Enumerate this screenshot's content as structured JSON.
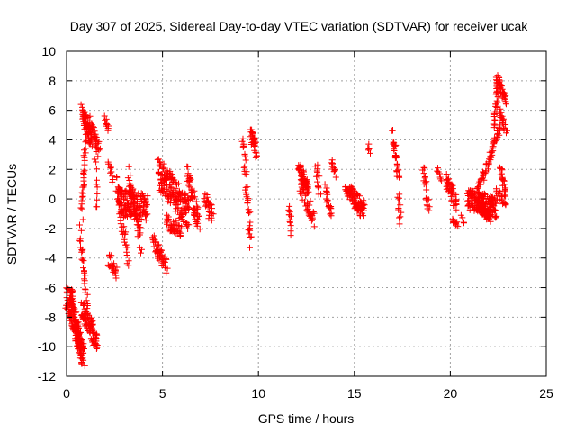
{
  "chart_data": {
    "type": "scatter",
    "title": "Day 307 of 2025, Sidereal Day-to-day VTEC variation (SDTVAR) for receiver ucak",
    "xlabel": "GPS time / hours",
    "ylabel": "SDTVAR / TECUs",
    "xlim": [
      0,
      25
    ],
    "ylim": [
      -12,
      10
    ],
    "xticks": [
      0,
      5,
      10,
      15,
      20,
      25
    ],
    "yticks": [
      -12,
      -10,
      -8,
      -6,
      -4,
      -2,
      0,
      2,
      4,
      6,
      8,
      10
    ],
    "grid": true,
    "marker": "plus",
    "color": "#ff0000",
    "series": [
      {
        "name": "SDTVAR",
        "segments": [
          {
            "x": [
              0.0,
              0.9
            ],
            "y": [
              -6.6,
              -10.7
            ],
            "n": 120,
            "spread": 0.8
          },
          {
            "x": [
              0.2,
              0.8
            ],
            "y": [
              -6.2,
              -10.6
            ],
            "n": 80,
            "spread": 0.7
          },
          {
            "x": [
              0.8,
              1.6
            ],
            "y": [
              -7.5,
              -9.6
            ],
            "n": 90,
            "spread": 0.7
          },
          {
            "x": [
              0.7,
              1.1
            ],
            "y": [
              -2.0,
              -7.5
            ],
            "n": 30,
            "spread": 0.4
          },
          {
            "x": [
              0.8,
              1.3
            ],
            "y": [
              6.0,
              4.0
            ],
            "n": 70,
            "spread": 0.6
          },
          {
            "x": [
              0.8,
              1.0
            ],
            "y": [
              -1.0,
              4.0
            ],
            "n": 30,
            "spread": 0.4
          },
          {
            "x": [
              1.2,
              1.7
            ],
            "y": [
              5.2,
              3.2
            ],
            "n": 40,
            "spread": 0.5
          },
          {
            "x": [
              1.5,
              1.6
            ],
            "y": [
              2.5,
              -0.5
            ],
            "n": 10,
            "spread": 0.4
          },
          {
            "x": [
              2.0,
              2.2
            ],
            "y": [
              5.5,
              4.6
            ],
            "n": 10,
            "spread": 0.2
          },
          {
            "x": [
              2.2,
              2.4
            ],
            "y": [
              2.4,
              1.2
            ],
            "n": 10,
            "spread": 0.3
          },
          {
            "x": [
              2.2,
              2.6
            ],
            "y": [
              -4.0,
              -5.0
            ],
            "n": 25,
            "spread": 0.4
          },
          {
            "x": [
              2.6,
              3.2
            ],
            "y": [
              1.2,
              -4.3
            ],
            "n": 40,
            "spread": 0.6
          },
          {
            "x": [
              2.7,
              4.2
            ],
            "y": [
              -0.2,
              -0.6
            ],
            "n": 140,
            "spread": 0.9
          },
          {
            "x": [
              3.2,
              3.9
            ],
            "y": [
              1.6,
              -3.0
            ],
            "n": 45,
            "spread": 0.7
          },
          {
            "x": [
              4.5,
              5.2
            ],
            "y": [
              -2.8,
              -4.6
            ],
            "n": 50,
            "spread": 0.5
          },
          {
            "x": [
              4.8,
              6.4
            ],
            "y": [
              1.7,
              -1.0
            ],
            "n": 170,
            "spread": 1.1
          },
          {
            "x": [
              5.2,
              6.0
            ],
            "y": [
              -1.5,
              -2.3
            ],
            "n": 40,
            "spread": 0.5
          },
          {
            "x": [
              6.3,
              6.9
            ],
            "y": [
              1.8,
              -1.8
            ],
            "n": 55,
            "spread": 0.6
          },
          {
            "x": [
              7.2,
              7.6
            ],
            "y": [
              0.2,
              -1.3
            ],
            "n": 28,
            "spread": 0.6
          },
          {
            "x": [
              9.2,
              9.6
            ],
            "y": [
              4.2,
              -3.0
            ],
            "n": 40,
            "spread": 0.5
          },
          {
            "x": [
              9.6,
              9.9
            ],
            "y": [
              4.6,
              3.2
            ],
            "n": 35,
            "spread": 0.5
          },
          {
            "x": [
              11.6,
              11.7
            ],
            "y": [
              -0.5,
              -2.3
            ],
            "n": 12,
            "spread": 0.3
          },
          {
            "x": [
              12.1,
              12.6
            ],
            "y": [
              2.1,
              0.6
            ],
            "n": 55,
            "spread": 0.4
          },
          {
            "x": [
              12.2,
              12.9
            ],
            "y": [
              1.0,
              -1.5
            ],
            "n": 45,
            "spread": 0.6
          },
          {
            "x": [
              13.0,
              13.2
            ],
            "y": [
              2.2,
              0.5
            ],
            "n": 15,
            "spread": 0.4
          },
          {
            "x": [
              13.5,
              13.8
            ],
            "y": [
              0.7,
              -1.0
            ],
            "n": 20,
            "spread": 0.4
          },
          {
            "x": [
              13.8,
              14.0
            ],
            "y": [
              2.4,
              1.6
            ],
            "n": 12,
            "spread": 0.3
          },
          {
            "x": [
              14.5,
              14.7
            ],
            "y": [
              0.8,
              0.3
            ],
            "n": 12,
            "spread": 0.2
          },
          {
            "x": [
              14.7,
              15.5
            ],
            "y": [
              0.6,
              -0.6
            ],
            "n": 70,
            "spread": 0.5
          },
          {
            "x": [
              15.0,
              15.4
            ],
            "y": [
              -0.4,
              -1.0
            ],
            "n": 20,
            "spread": 0.3
          },
          {
            "x": [
              15.7,
              15.8
            ],
            "y": [
              3.6,
              3.2
            ],
            "n": 5,
            "spread": 0.2
          },
          {
            "x": [
              17.0,
              17.3
            ],
            "y": [
              4.5,
              1.2
            ],
            "n": 30,
            "spread": 0.4
          },
          {
            "x": [
              17.3,
              17.4
            ],
            "y": [
              0.5,
              -1.5
            ],
            "n": 12,
            "spread": 0.4
          },
          {
            "x": [
              18.6,
              18.9
            ],
            "y": [
              2.0,
              -0.6
            ],
            "n": 22,
            "spread": 0.5
          },
          {
            "x": [
              19.3,
              19.5
            ],
            "y": [
              2.0,
              1.4
            ],
            "n": 8,
            "spread": 0.2
          },
          {
            "x": [
              19.8,
              20.3
            ],
            "y": [
              1.2,
              -0.3
            ],
            "n": 45,
            "spread": 0.6
          },
          {
            "x": [
              20.1,
              20.4
            ],
            "y": [
              -1.4,
              -1.8
            ],
            "n": 12,
            "spread": 0.2
          },
          {
            "x": [
              20.6,
              20.7
            ],
            "y": [
              -1.3,
              -1.7
            ],
            "n": 4,
            "spread": 0.2
          },
          {
            "x": [
              20.9,
              22.4
            ],
            "y": [
              0.0,
              -0.6
            ],
            "n": 160,
            "spread": 0.7
          },
          {
            "x": [
              21.5,
              22.1
            ],
            "y": [
              -0.5,
              -1.3
            ],
            "n": 45,
            "spread": 0.3
          },
          {
            "x": [
              21.4,
              22.0
            ],
            "y": [
              0.4,
              2.4
            ],
            "n": 30,
            "spread": 0.3
          },
          {
            "x": [
              22.0,
              22.6
            ],
            "y": [
              2.5,
              5.0
            ],
            "n": 35,
            "spread": 0.3
          },
          {
            "x": [
              22.3,
              22.5
            ],
            "y": [
              5.0,
              8.0
            ],
            "n": 30,
            "spread": 0.3
          },
          {
            "x": [
              22.4,
              22.9
            ],
            "y": [
              8.3,
              6.7
            ],
            "n": 35,
            "spread": 0.4
          },
          {
            "x": [
              22.6,
              22.9
            ],
            "y": [
              6.0,
              4.6
            ],
            "n": 20,
            "spread": 0.3
          },
          {
            "x": [
              22.6,
              22.9
            ],
            "y": [
              2.0,
              0.3
            ],
            "n": 20,
            "spread": 0.3
          },
          {
            "x": [
              22.4,
              22.9
            ],
            "y": [
              0.5,
              -0.3
            ],
            "n": 20,
            "spread": 0.3
          }
        ]
      }
    ]
  }
}
